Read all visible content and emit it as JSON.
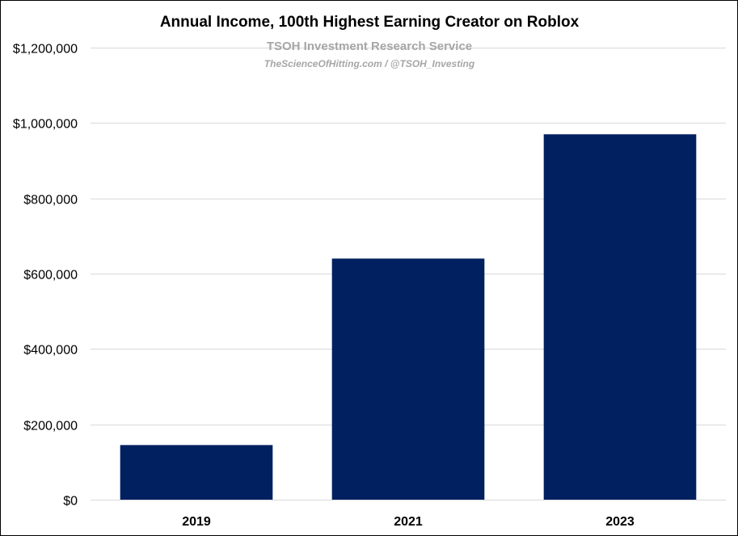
{
  "chart_data": {
    "type": "bar",
    "title": "Annual Income, 100th Highest Earning Creator on Roblox",
    "watermark": {
      "line1": "TSOH Investment Research Service",
      "line2": "TheScienceOfHitting.com / @TSOH_Investing"
    },
    "categories": [
      "2019",
      "2021",
      "2023"
    ],
    "values": [
      145000,
      640000,
      970000
    ],
    "ylim": [
      0,
      1200000
    ],
    "y_ticks": [
      0,
      200000,
      400000,
      600000,
      800000,
      1000000,
      1200000
    ],
    "y_tick_labels": [
      "$0",
      "$200,000",
      "$400,000",
      "$600,000",
      "$800,000",
      "$1,000,000",
      "$1,200,000"
    ],
    "xlabel": "",
    "ylabel": "",
    "grid": true,
    "legend": "none",
    "colors": {
      "bar": "#002060",
      "grid": "#d9d9d9",
      "watermark": "#a6a6a6"
    }
  }
}
